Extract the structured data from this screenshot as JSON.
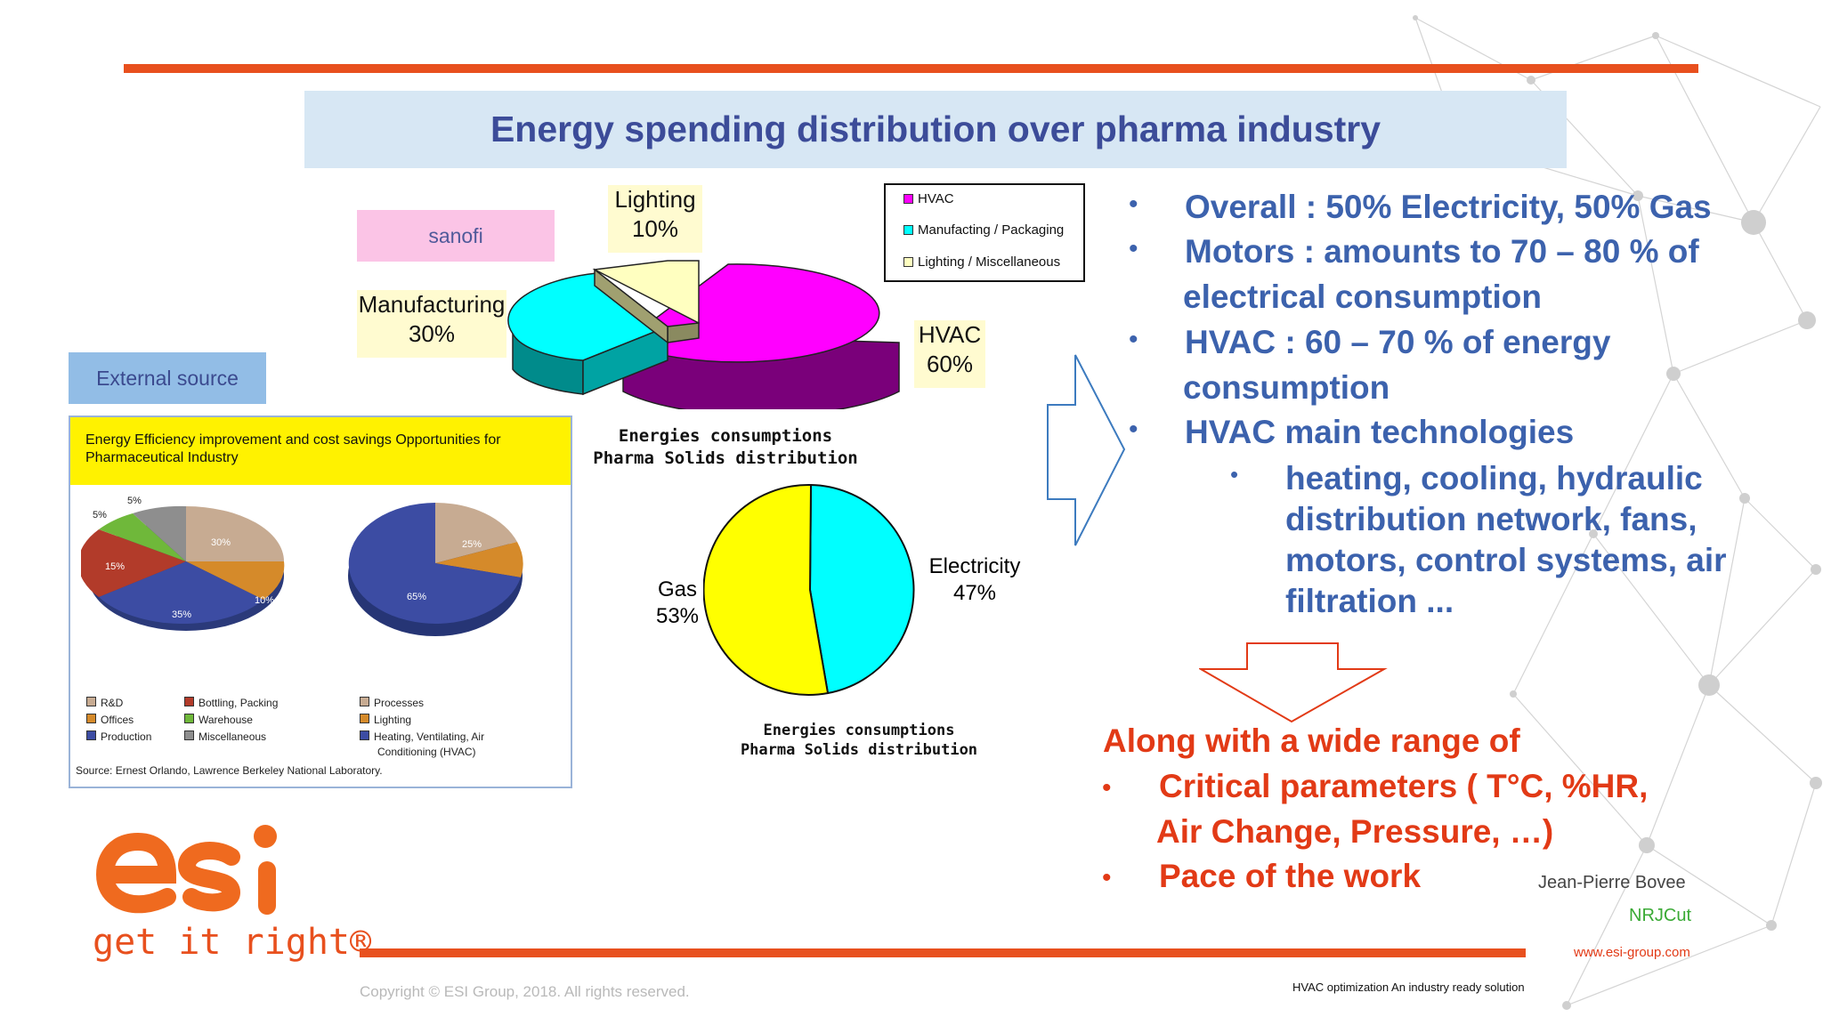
{
  "slide": {
    "title": "Energy spending distribution over pharma industry",
    "sanofi_tag": "sanofi",
    "external_tag": "External source",
    "accent_color": "#e8501e",
    "title_color": "#3c4c99",
    "bullet_color": "#3c62ad",
    "red_color": "#e23a16"
  },
  "pie1": {
    "labels": {
      "lighting_name": "Lighting",
      "lighting_pct": "10%",
      "manufacturing_name": "Manufacturing",
      "manufacturing_pct": "30%",
      "hvac_name": "HVAC",
      "hvac_pct": "60%"
    },
    "legend": [
      "HVAC",
      "Manufacting / Packaging",
      "Lighting / Miscellaneous"
    ],
    "caption_line1": "Energies consumptions",
    "caption_line2": "Pharma Solids distribution"
  },
  "pie2": {
    "gas_name": "Gas",
    "gas_pct": "53%",
    "electricity_name": "Electricity",
    "electricity_pct": "47%",
    "caption_line1": "Energies consumptions",
    "caption_line2": "Pharma Solids distribution"
  },
  "external_panel": {
    "heading": "Energy Efficiency improvement and cost savings Opportunities for Pharmaceutical Industry",
    "pie_a_labels": [
      "5%",
      "5%",
      "15%",
      "30%",
      "10%",
      "35%"
    ],
    "pie_b_labels": [
      "25%",
      "10%",
      "65%"
    ],
    "legend_a": [
      "R&D",
      "Offices",
      "Production",
      "Bottling, Packing",
      "Warehouse",
      "Miscellaneous"
    ],
    "legend_b": [
      "Processes",
      "Lighting",
      "Heating, Ventilating, Air",
      "Conditioning (HVAC)"
    ],
    "source": "Source: Ernest Orlando, Lawrence Berkeley National Laboratory."
  },
  "bullets": {
    "b1": "Overall : 50% Electricity, 50% Gas",
    "b2_line1": "Motors : amounts to 70 – 80 % of",
    "b2_line2": "electrical consumption",
    "b3_line1": "HVAC : 60 – 70 % of energy",
    "b3_line2": "consumption",
    "b4": "HVAC main technologies",
    "sub_line1": "heating, cooling, hydraulic",
    "sub_line2": "distribution network, fans,",
    "sub_line3": "motors, control systems, air",
    "sub_line4": "filtration ..."
  },
  "red_block": {
    "intro": "Along with a wide range of",
    "r1_line1": "Critical parameters ( T°C, %HR,",
    "r1_line2": "Air Change, Pressure, …)",
    "r2": "Pace of the work"
  },
  "author": {
    "name": "Jean-Pierre Bovee",
    "project": "NRJCut",
    "website": "www.esi-group.com"
  },
  "footer": {
    "copyright": "Copyright © ESI Group, 2018. All rights reserved.",
    "tagline": "HVAC optimization An industry ready solution"
  },
  "logo": {
    "wordmark": "esi",
    "slogan": "get it right®"
  }
}
